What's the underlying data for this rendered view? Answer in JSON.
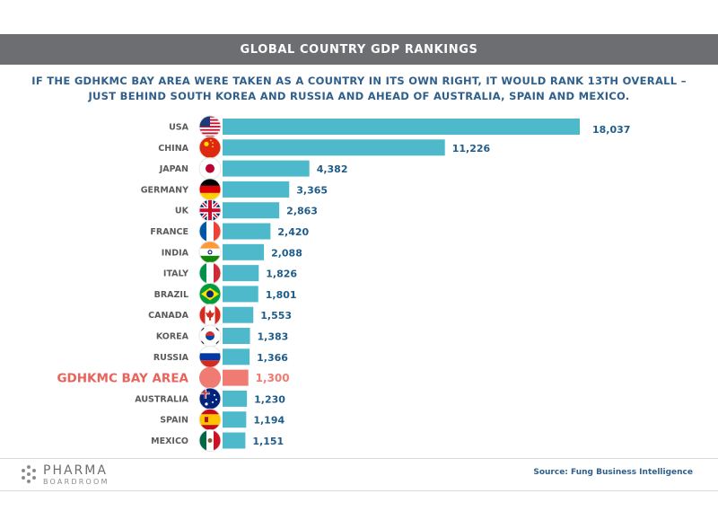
{
  "header": {
    "title": "GLOBAL COUNTRY GDP RANKINGS"
  },
  "subtitle": {
    "line1": "IF THE GDHKMC BAY AREA WERE TAKEN AS A COUNTRY IN ITS OWN RIGHT, IT WOULD RANK 13TH OVERALL –",
    "line2": "JUST BEHIND SOUTH KOREA AND RUSSIA AND AHEAD OF AUSTRALIA, SPAIN AND MEXICO."
  },
  "colors": {
    "bar": "#4fb9cc",
    "highlight_bar": "#f07b73",
    "country_label": "#5b5b5b",
    "highlight_label": "#e8635c",
    "value_label": "#1f5c8a",
    "highlight_value": "#f07b73"
  },
  "chart_data": {
    "type": "bar",
    "orientation": "horizontal",
    "categories": [
      "USA",
      "CHINA",
      "JAPAN",
      "GERMANY",
      "UK",
      "FRANCE",
      "INDIA",
      "ITALY",
      "BRAZIL",
      "CANADA",
      "KOREA",
      "RUSSIA",
      "GDHKMC BAY AREA",
      "AUSTRALIA",
      "SPAIN",
      "MEXICO"
    ],
    "values": [
      18037,
      11226,
      4382,
      3365,
      2863,
      2420,
      2088,
      1826,
      1801,
      1553,
      1383,
      1366,
      1300,
      1230,
      1194,
      1151
    ],
    "value_labels": [
      "18,037",
      "11,226",
      "4,382",
      "3,365",
      "2,863",
      "2,420",
      "2,088",
      "1,826",
      "1,801",
      "1,553",
      "1,383",
      "1,366",
      "1,300",
      "1,230",
      "1,194",
      "1,151"
    ],
    "highlight": "GDHKMC BAY AREA",
    "flags": [
      "usa-flag-icon",
      "china-flag-icon",
      "japan-flag-icon",
      "germany-flag-icon",
      "uk-flag-icon",
      "france-flag-icon",
      "india-flag-icon",
      "italy-flag-icon",
      "brazil-flag-icon",
      "canada-flag-icon",
      "korea-flag-icon",
      "russia-flag-icon",
      "",
      "australia-flag-icon",
      "spain-flag-icon",
      "mexico-flag-icon"
    ],
    "title": "GLOBAL COUNTRY GDP RANKINGS",
    "xlabel": "",
    "ylabel": "",
    "xlim": [
      0,
      18037
    ],
    "grid": false,
    "legend": "none"
  },
  "footer": {
    "logo_main": "PHARMA",
    "logo_sub": "BOARDROOM",
    "source": "Source: Fung Business Intelligence"
  }
}
